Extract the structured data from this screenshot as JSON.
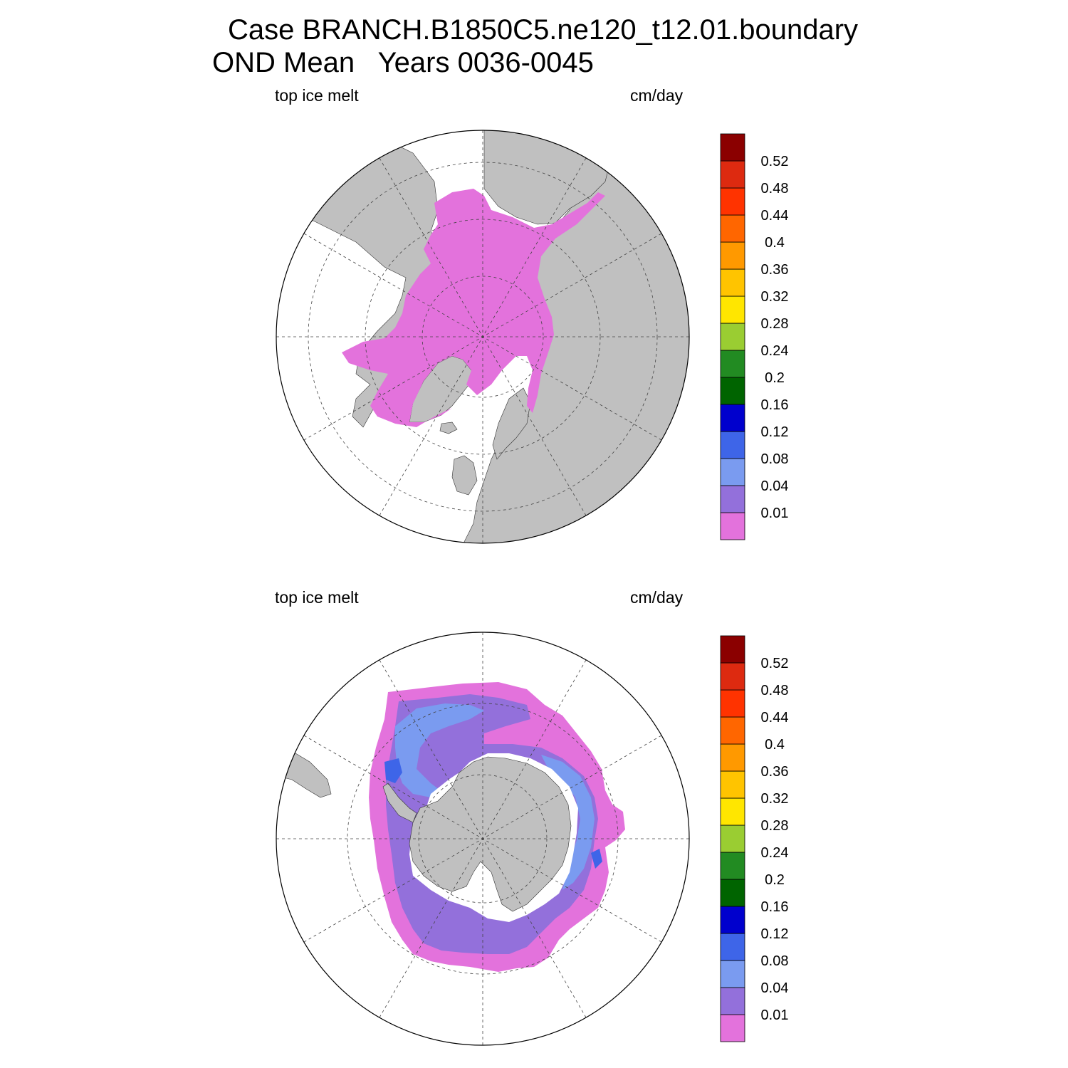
{
  "title": {
    "line1": "Case BRANCH.B1850C5.ne120_t12.01.boundary",
    "line2": "OND Mean   Years 0036-0045"
  },
  "panels": [
    {
      "id": "north",
      "hemisphere": "north",
      "left_label": "top ice melt",
      "right_label": "cm/day"
    },
    {
      "id": "south",
      "hemisphere": "south",
      "left_label": "top ice melt",
      "right_label": "cm/day"
    }
  ],
  "colorbar": {
    "labels": [
      "0.01",
      "0.04",
      "0.08",
      "0.12",
      "0.16",
      "0.2",
      "0.24",
      "0.28",
      "0.32",
      "0.36",
      "0.4",
      "0.44",
      "0.48",
      "0.52"
    ],
    "colors": [
      "#e372dc",
      "#9370db",
      "#7a9bf0",
      "#3e65e8",
      "#0000cd",
      "#006400",
      "#228b22",
      "#9acd32",
      "#ffe600",
      "#ffc400",
      "#ff9900",
      "#ff6600",
      "#ff3300",
      "#dd2a10",
      "#8b0000"
    ]
  },
  "land_color": "#c0c0c0",
  "ocean_color": "#ffffff"
}
